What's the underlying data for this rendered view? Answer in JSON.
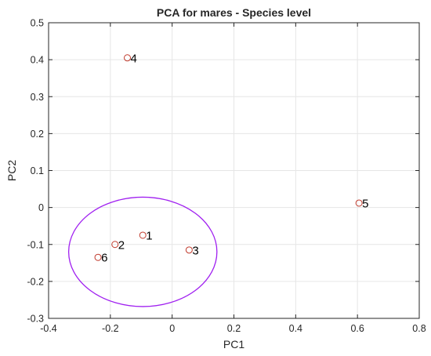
{
  "chart_data": {
    "type": "scatter",
    "title": "PCA for mares - Species level",
    "xlabel": "PC1",
    "ylabel": "PC2",
    "xlim": [
      -0.4,
      0.8
    ],
    "ylim": [
      -0.3,
      0.5
    ],
    "xticks": [
      -0.4,
      -0.2,
      0,
      0.2,
      0.4,
      0.6,
      0.8
    ],
    "xtick_labels": [
      "-0.4",
      "-0.2",
      "0",
      "0.2",
      "0.4",
      "0.6",
      "0.8"
    ],
    "yticks": [
      -0.3,
      -0.2,
      -0.1,
      0,
      0.1,
      0.2,
      0.3,
      0.4,
      0.5
    ],
    "ytick_labels": [
      "-0.3",
      "-0.2",
      "-0.1",
      "0",
      "0.1",
      "0.2",
      "0.3",
      "0.4",
      "0.5"
    ],
    "grid": true,
    "points": [
      {
        "label": "1",
        "x": -0.095,
        "y": -0.075
      },
      {
        "label": "2",
        "x": -0.185,
        "y": -0.1
      },
      {
        "label": "3",
        "x": 0.055,
        "y": -0.115
      },
      {
        "label": "4",
        "x": -0.145,
        "y": 0.405
      },
      {
        "label": "5",
        "x": 0.605,
        "y": 0.012
      },
      {
        "label": "6",
        "x": -0.24,
        "y": -0.135
      }
    ],
    "ellipse": {
      "cx": -0.095,
      "cy": -0.12,
      "rx": 0.24,
      "ry": 0.148,
      "color": "#a020f0"
    },
    "marker_color": "#c0392b",
    "axes_color": "#262626",
    "grid_color": "#e6e6e6"
  }
}
